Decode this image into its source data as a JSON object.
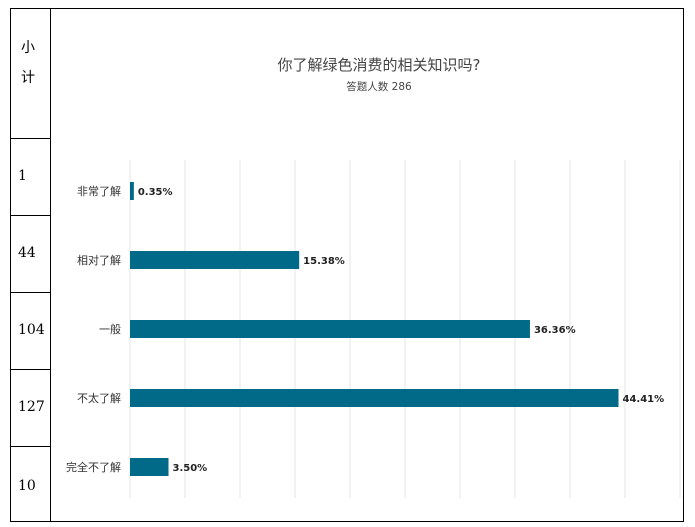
{
  "table": {
    "header": "小计",
    "header_chars": [
      "小",
      "计"
    ],
    "counts": [
      "1",
      "44",
      "104",
      "127",
      "10"
    ]
  },
  "colors": {
    "bar": "#006a88",
    "grid": "#e4e4e4",
    "text": "#333333"
  },
  "chart_data": {
    "type": "bar",
    "orientation": "horizontal",
    "title": "你了解绿色消费的相关知识吗?",
    "subtitle": "答题人数 286",
    "categories": [
      "非常了解",
      "相对了解",
      "一般",
      "不太了解",
      "完全不了解"
    ],
    "values": [
      0.35,
      15.38,
      36.36,
      44.41,
      3.5
    ],
    "value_labels": [
      "0.35%",
      "15.38%",
      "36.36%",
      "44.41%",
      "3.50%"
    ],
    "xlim": [
      0,
      50
    ],
    "grid": true,
    "legend": "none"
  }
}
